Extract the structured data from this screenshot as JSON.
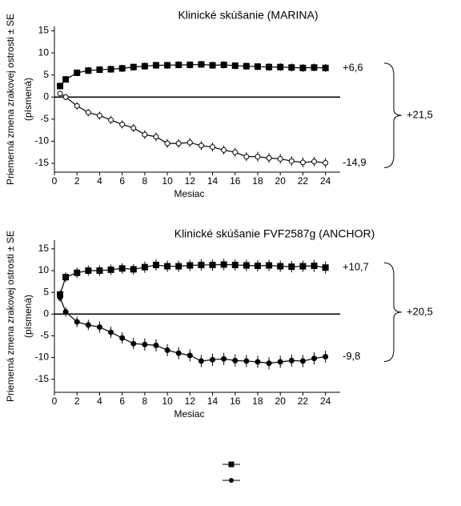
{
  "chart_data": [
    {
      "type": "line",
      "title": "Klinické skúšanie (MARINA)",
      "ylabel": [
        "Priemerná zmena zrakovej ostrosti ± SE",
        "(písmená)"
      ],
      "xlabel": "Mesiac",
      "x": [
        0.5,
        1,
        2,
        3,
        4,
        5,
        6,
        7,
        8,
        9,
        10,
        11,
        12,
        13,
        14,
        15,
        16,
        17,
        18,
        19,
        20,
        21,
        22,
        23,
        24
      ],
      "xlim": [
        0,
        25.3
      ],
      "xticks": [
        0,
        2,
        4,
        6,
        8,
        10,
        12,
        14,
        16,
        18,
        20,
        22,
        24
      ],
      "ylim": [
        -17,
        16
      ],
      "yticks": [
        -15,
        -10,
        -5,
        0,
        5,
        10,
        15
      ],
      "difference_label": "+21,5",
      "series": [
        {
          "color": "#000000",
          "marker": "square",
          "fill": "#000000",
          "end_label": "+6,6",
          "values": [
            2.5,
            4,
            5.5,
            6,
            6.2,
            6.3,
            6.5,
            6.8,
            7,
            7.2,
            7.2,
            7.3,
            7.3,
            7.4,
            7.2,
            7.3,
            7.1,
            7,
            6.9,
            6.8,
            6.8,
            6.7,
            6.6,
            6.7,
            6.6
          ],
          "errors": [
            0.6,
            0.7,
            0.7,
            0.8,
            0.8,
            0.8,
            0.8,
            0.8,
            0.8,
            0.8,
            0.8,
            0.8,
            0.8,
            0.8,
            0.8,
            0.8,
            0.8,
            0.8,
            0.8,
            0.9,
            0.9,
            0.9,
            0.9,
            0.9,
            0.9
          ]
        },
        {
          "color": "#000000",
          "marker": "circle",
          "fill": "#ffffff",
          "end_label": "-14,9",
          "values": [
            0.8,
            0,
            -2,
            -3.5,
            -4.2,
            -5.2,
            -6.2,
            -7,
            -8.5,
            -9,
            -10.5,
            -10.5,
            -10.3,
            -11,
            -11.3,
            -12,
            -12.5,
            -13.5,
            -13.5,
            -13.8,
            -14,
            -14.5,
            -14.8,
            -14.6,
            -14.9
          ],
          "errors": [
            0.6,
            0.7,
            0.8,
            0.8,
            0.9,
            0.9,
            0.9,
            0.9,
            1,
            1,
            1,
            1,
            1,
            1,
            1,
            1,
            1,
            1,
            1.1,
            1.1,
            1.1,
            1.1,
            1.1,
            1.1,
            1.1
          ]
        }
      ]
    },
    {
      "type": "line",
      "title": "Klinické skúšanie FVF2587g (ANCHOR)",
      "ylabel": [
        "Priemerná zmena zrakovej ostrosti ± SE",
        "(písmená)"
      ],
      "xlabel": "Mesiac",
      "x": [
        0.5,
        1,
        2,
        3,
        4,
        5,
        6,
        7,
        8,
        9,
        10,
        11,
        12,
        13,
        14,
        15,
        16,
        17,
        18,
        19,
        20,
        21,
        22,
        23,
        24
      ],
      "xlim": [
        0,
        25.3
      ],
      "xticks": [
        0,
        2,
        4,
        6,
        8,
        10,
        12,
        14,
        16,
        18,
        20,
        22,
        24
      ],
      "ylim": [
        -18,
        17
      ],
      "yticks": [
        -15,
        -10,
        -5,
        0,
        5,
        10,
        15
      ],
      "difference_label": "+20,5",
      "series": [
        {
          "color": "#000000",
          "marker": "square",
          "fill": "#000000",
          "end_label": "+10,7",
          "values": [
            4.5,
            8.5,
            9.5,
            10,
            10,
            10.2,
            10.5,
            10.3,
            10.8,
            11.3,
            11,
            11,
            11.2,
            11.3,
            11.3,
            11.4,
            11.3,
            11.2,
            11.1,
            11.2,
            11,
            10.9,
            11,
            11.1,
            10.7
          ],
          "errors": [
            1,
            1.1,
            1.2,
            1.2,
            1.2,
            1.2,
            1.2,
            1.2,
            1.3,
            1.3,
            1.3,
            1.3,
            1.3,
            1.3,
            1.3,
            1.3,
            1.3,
            1.3,
            1.3,
            1.3,
            1.3,
            1.3,
            1.3,
            1.4,
            1.4
          ]
        },
        {
          "color": "#000000",
          "marker": "circle",
          "fill": "#000000",
          "end_label": "-9,8",
          "values": [
            3.8,
            0.5,
            -1.8,
            -2.5,
            -3,
            -4.2,
            -5.5,
            -6.8,
            -7,
            -7.2,
            -8.3,
            -9,
            -9.5,
            -10.8,
            -10.5,
            -10.3,
            -10.7,
            -10.8,
            -11,
            -11.3,
            -11,
            -10.7,
            -10.8,
            -10.2,
            -9.8
          ],
          "errors": [
            1,
            1.1,
            1.2,
            1.2,
            1.3,
            1.3,
            1.3,
            1.3,
            1.4,
            1.4,
            1.4,
            1.4,
            1.4,
            1.4,
            1.4,
            1.4,
            1.4,
            1.4,
            1.4,
            1.4,
            1.4,
            1.4,
            1.4,
            1.4,
            1.4
          ]
        }
      ]
    }
  ]
}
